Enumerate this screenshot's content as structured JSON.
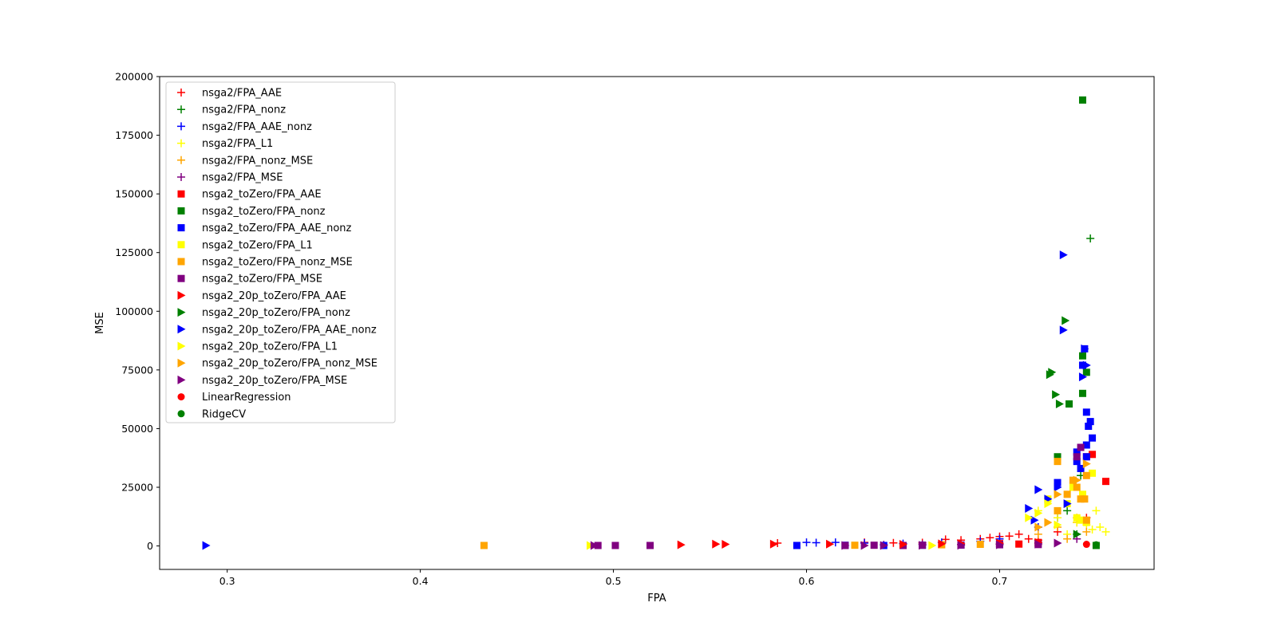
{
  "chart_data": {
    "type": "scatter",
    "title": "",
    "xlabel": "FPA",
    "ylabel": "MSE",
    "xlim": [
      0.265,
      0.78
    ],
    "ylim": [
      -10000,
      200000
    ],
    "xticks": [
      0.3,
      0.4,
      0.5,
      0.6,
      0.7
    ],
    "yticks": [
      0,
      25000,
      50000,
      75000,
      100000,
      125000,
      150000,
      175000,
      200000
    ],
    "grid": false,
    "legend_position": "upper-left",
    "series": [
      {
        "name": "nsga2/FPA_AAE",
        "marker": "plus",
        "color": "#ff0000",
        "x": [
          0.585,
          0.63,
          0.645,
          0.66,
          0.672,
          0.68,
          0.69,
          0.695,
          0.7,
          0.705,
          0.71,
          0.715,
          0.72,
          0.73,
          0.74,
          0.745
        ],
        "y": [
          1200,
          1500,
          1300,
          1400,
          2800,
          2500,
          3000,
          3500,
          4000,
          4200,
          5000,
          3000,
          2500,
          6000,
          10000,
          12000
        ]
      },
      {
        "name": "nsga2/FPA_nonz",
        "marker": "plus",
        "color": "#008000",
        "x": [
          0.747,
          0.742,
          0.735,
          0.74
        ],
        "y": [
          131000,
          30000,
          15000,
          5000
        ]
      },
      {
        "name": "nsga2/FPA_AAE_nonz",
        "marker": "plus",
        "color": "#0000ff",
        "x": [
          0.6,
          0.605,
          0.615,
          0.63,
          0.65,
          0.67,
          0.69,
          0.7,
          0.72,
          0.73
        ],
        "y": [
          1500,
          1400,
          1500,
          1200,
          1000,
          1500,
          2000,
          3000,
          8000,
          12000
        ]
      },
      {
        "name": "nsga2/FPA_L1",
        "marker": "plus",
        "color": "#ffff00",
        "x": [
          0.72,
          0.73,
          0.74,
          0.745,
          0.75,
          0.752,
          0.755,
          0.748,
          0.735
        ],
        "y": [
          15000,
          12000,
          10000,
          9000,
          15000,
          8000,
          6000,
          7000,
          5000
        ]
      },
      {
        "name": "nsga2/FPA_nonz_MSE",
        "marker": "plus",
        "color": "#ffa500",
        "x": [
          0.72,
          0.73,
          0.74,
          0.745,
          0.735
        ],
        "y": [
          5000,
          8000,
          12000,
          6000,
          3000
        ]
      },
      {
        "name": "nsga2/FPA_MSE",
        "marker": "plus",
        "color": "#800080",
        "x": [
          0.64,
          0.66,
          0.68,
          0.7,
          0.72,
          0.74
        ],
        "y": [
          500,
          700,
          600,
          800,
          1200,
          3000
        ]
      },
      {
        "name": "nsga2_toZero/FPA_AAE",
        "marker": "square",
        "color": "#ff0000",
        "x": [
          0.755,
          0.748,
          0.745,
          0.7,
          0.71,
          0.72
        ],
        "y": [
          27500,
          39000,
          38000,
          1000,
          800,
          1500
        ]
      },
      {
        "name": "nsga2_toZero/FPA_nonz",
        "marker": "square",
        "color": "#008000",
        "x": [
          0.743,
          0.745,
          0.743,
          0.743,
          0.736,
          0.73,
          0.75
        ],
        "y": [
          190000,
          74000,
          81000,
          65000,
          60500,
          38000,
          200
        ]
      },
      {
        "name": "nsga2_toZero/FPA_AAE_nonz",
        "marker": "square",
        "color": "#0000ff",
        "x": [
          0.595,
          0.62,
          0.64,
          0.66,
          0.68,
          0.7,
          0.73,
          0.74,
          0.745,
          0.746,
          0.747,
          0.748,
          0.744,
          0.743,
          0.745,
          0.742,
          0.74,
          0.745
        ],
        "y": [
          200,
          300,
          200,
          300,
          400,
          600,
          27000,
          40000,
          57000,
          51000,
          53000,
          46000,
          84000,
          77000,
          43000,
          33000,
          36000,
          38000
        ]
      },
      {
        "name": "nsga2_toZero/FPA_L1",
        "marker": "square",
        "color": "#ffff00",
        "x": [
          0.725,
          0.73,
          0.735,
          0.74,
          0.745,
          0.748,
          0.743,
          0.738,
          0.742
        ],
        "y": [
          20000,
          15000,
          18000,
          12000,
          10000,
          31000,
          22000,
          25000,
          11000
        ]
      },
      {
        "name": "nsga2_toZero/FPA_nonz_MSE",
        "marker": "square",
        "color": "#ffa500",
        "x": [
          0.433,
          0.625,
          0.67,
          0.69,
          0.73,
          0.735,
          0.738,
          0.74,
          0.742,
          0.744,
          0.745,
          0.73,
          0.745
        ],
        "y": [
          200,
          300,
          500,
          700,
          36000,
          22000,
          28000,
          25000,
          20000,
          20000,
          11000,
          15000,
          30000
        ]
      },
      {
        "name": "nsga2_toZero/FPA_MSE",
        "marker": "square",
        "color": "#800080",
        "x": [
          0.492,
          0.501,
          0.519,
          0.62,
          0.635,
          0.65,
          0.66,
          0.68,
          0.7,
          0.72,
          0.742,
          0.74
        ],
        "y": [
          200,
          200,
          200,
          200,
          300,
          200,
          300,
          400,
          500,
          600,
          42000,
          38000
        ]
      },
      {
        "name": "nsga2_20p_toZero/FPA_AAE",
        "marker": "triangle-right",
        "color": "#ff0000",
        "x": [
          0.535,
          0.553,
          0.558,
          0.583,
          0.612,
          0.65,
          0.67,
          0.68,
          0.7,
          0.72
        ],
        "y": [
          500,
          800,
          700,
          800,
          800,
          700,
          900,
          1000,
          1200,
          1500
        ]
      },
      {
        "name": "nsga2_20p_toZero/FPA_nonz",
        "marker": "triangle-right",
        "color": "#008000",
        "x": [
          0.734,
          0.727,
          0.726,
          0.729,
          0.731,
          0.74
        ],
        "y": [
          96000,
          74000,
          73000,
          64500,
          60500,
          5000
        ]
      },
      {
        "name": "nsga2_20p_toZero/FPA_AAE_nonz",
        "marker": "triangle-right",
        "color": "#0000ff",
        "x": [
          0.289,
          0.733,
          0.744,
          0.733,
          0.743,
          0.745,
          0.72,
          0.715,
          0.725,
          0.73,
          0.735,
          0.718
        ],
        "y": [
          200,
          124000,
          84000,
          92000,
          72000,
          77000,
          24000,
          16000,
          20000,
          25000,
          18000,
          11000
        ]
      },
      {
        "name": "nsga2_20p_toZero/FPA_L1",
        "marker": "triangle-right",
        "color": "#ffff00",
        "x": [
          0.488,
          0.665,
          0.715,
          0.72,
          0.725,
          0.73
        ],
        "y": [
          200,
          200,
          12000,
          14000,
          18000,
          9000
        ]
      },
      {
        "name": "nsga2_20p_toZero/FPA_nonz_MSE",
        "marker": "triangle-right",
        "color": "#ffa500",
        "x": [
          0.72,
          0.725,
          0.73,
          0.74,
          0.745
        ],
        "y": [
          8000,
          10000,
          22000,
          28000,
          35000
        ]
      },
      {
        "name": "nsga2_20p_toZero/FPA_MSE",
        "marker": "triangle-right",
        "color": "#800080",
        "x": [
          0.49,
          0.62,
          0.63,
          0.64,
          0.66,
          0.68,
          0.7,
          0.72,
          0.73
        ],
        "y": [
          200,
          200,
          200,
          200,
          300,
          300,
          500,
          800,
          1200
        ]
      },
      {
        "name": "LinearRegression",
        "marker": "circle",
        "color": "#ff0000",
        "x": [
          0.745
        ],
        "y": [
          700
        ]
      },
      {
        "name": "RidgeCV",
        "marker": "circle",
        "color": "#008000",
        "x": [
          0.75
        ],
        "y": [
          500
        ]
      }
    ]
  }
}
